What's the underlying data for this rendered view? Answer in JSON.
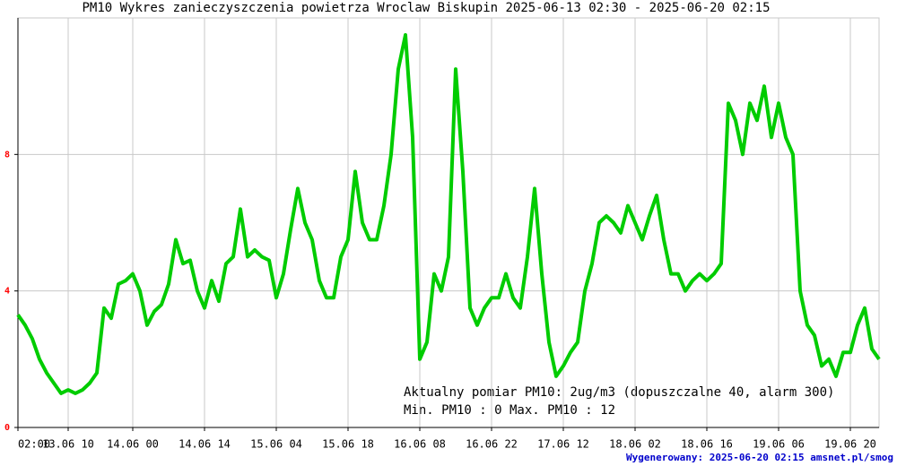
{
  "chart_data": {
    "type": "line",
    "title": "PM10 Wykres zanieczyszczenia powietrza Wroclaw Biskupin  2025-06-13 02:30 - 2025-06-20 02:15",
    "categories": [
      "02:00",
      null,
      null,
      null,
      null,
      null,
      null,
      "13.06 10",
      null,
      null,
      null,
      null,
      null,
      null,
      null,
      null,
      "14.06 00",
      null,
      null,
      null,
      null,
      null,
      null,
      null,
      null,
      null,
      "14.06 14",
      null,
      null,
      null,
      null,
      null,
      null,
      null,
      null,
      null,
      "15.06 04",
      null,
      null,
      null,
      null,
      null,
      null,
      null,
      null,
      null,
      "15.06 18",
      null,
      null,
      null,
      null,
      null,
      null,
      null,
      null,
      null,
      "16.06 08",
      null,
      null,
      null,
      null,
      null,
      null,
      null,
      null,
      null,
      "16.06 22",
      null,
      null,
      null,
      null,
      null,
      null,
      null,
      null,
      null,
      "17.06 12",
      null,
      null,
      null,
      null,
      null,
      null,
      null,
      null,
      null,
      "18.06 02",
      null,
      null,
      null,
      null,
      null,
      null,
      null,
      null,
      null,
      "18.06 16",
      null,
      null,
      null,
      null,
      null,
      null,
      null,
      null,
      null,
      "19.06 06",
      null,
      null,
      null,
      null,
      null,
      null,
      null,
      null,
      null,
      "19.06 20",
      null,
      null,
      null,
      null
    ],
    "values": [
      3.3,
      3.0,
      2.6,
      2.0,
      1.6,
      1.3,
      1.0,
      1.1,
      1.0,
      1.1,
      1.3,
      1.6,
      3.5,
      3.2,
      4.2,
      4.3,
      4.5,
      4.0,
      3.0,
      3.4,
      3.6,
      4.2,
      5.5,
      4.8,
      4.9,
      4.0,
      3.5,
      4.3,
      3.7,
      4.8,
      5.0,
      6.4,
      5.0,
      5.2,
      5.0,
      4.9,
      3.8,
      4.5,
      5.8,
      7.0,
      6.0,
      5.5,
      4.3,
      3.8,
      3.8,
      5.0,
      5.5,
      7.5,
      6.0,
      5.5,
      5.5,
      6.5,
      8.0,
      10.5,
      11.5,
      8.5,
      2.0,
      2.5,
      4.5,
      4.0,
      5.0,
      10.5,
      7.5,
      3.5,
      3.0,
      3.5,
      3.8,
      3.8,
      4.5,
      3.8,
      3.5,
      5.0,
      7.0,
      4.5,
      2.5,
      1.5,
      1.8,
      2.2,
      2.5,
      4.0,
      4.8,
      6.0,
      6.2,
      6.0,
      5.7,
      6.5,
      6.0,
      5.5,
      6.2,
      6.8,
      5.5,
      4.5,
      4.5,
      4.0,
      4.3,
      4.5,
      4.3,
      4.5,
      4.8,
      9.5,
      9.0,
      8.0,
      9.5,
      9.0,
      10.0,
      8.5,
      9.5,
      8.5,
      8.0,
      4.0,
      3.0,
      2.7,
      1.8,
      2.0,
      1.5,
      2.2,
      2.2,
      3.0,
      3.5,
      2.3,
      2.0
    ],
    "color": "#00cc00",
    "ylim": [
      0,
      12
    ],
    "yticks": [
      0,
      4,
      8
    ],
    "grid": true,
    "annotations": [
      "Aktualny pomiar PM10: 2ug/m3 (dopuszczalne 40, alarm 300)",
      "Min. PM10 : 0    Max. PM10 : 12"
    ],
    "footer": "Wygenerowany: 2025-06-20 02:15 amsnet.pl/smog"
  }
}
